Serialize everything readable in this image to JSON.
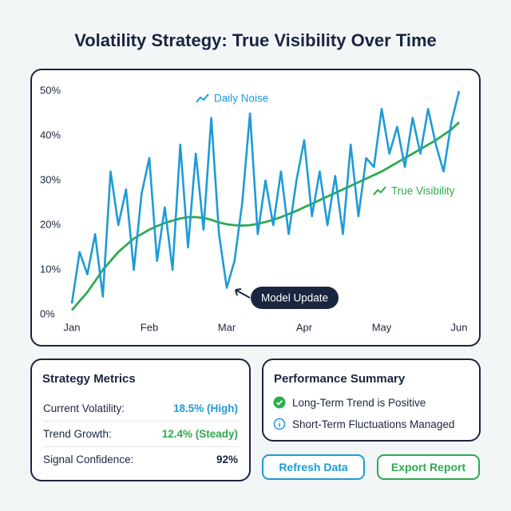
{
  "title": "Volatility Strategy: True Visibility Over Time",
  "chart_data": {
    "type": "line",
    "categories": [
      "Jan",
      null,
      null,
      null,
      null,
      null,
      null,
      null,
      null,
      null,
      "Feb",
      null,
      null,
      null,
      null,
      null,
      null,
      null,
      null,
      null,
      "Mar",
      null,
      null,
      null,
      null,
      null,
      null,
      null,
      null,
      null,
      "Apr",
      null,
      null,
      null,
      null,
      null,
      null,
      null,
      null,
      null,
      "May",
      null,
      null,
      null,
      null,
      null,
      null,
      null,
      null,
      null,
      "Jun"
    ],
    "series": [
      {
        "name": "Daily Noise",
        "color": "#1e9bd7",
        "values": [
          2.5,
          14,
          9,
          18,
          4,
          32,
          20,
          28,
          10,
          27,
          35,
          12,
          24,
          10,
          38,
          15,
          36,
          19,
          44,
          18,
          6,
          12,
          25,
          45,
          18,
          30,
          20,
          32,
          18,
          30,
          39,
          22,
          32,
          20,
          31,
          18,
          38,
          22,
          35,
          33,
          46,
          36,
          42,
          33,
          44,
          36,
          46,
          38,
          32,
          43,
          50
        ]
      },
      {
        "name": "True Visibility",
        "color": "#2eaa4f",
        "values": [
          1,
          3,
          5,
          7.5,
          10,
          12,
          14,
          15.5,
          17,
          18,
          19,
          19.8,
          20.5,
          21,
          21.5,
          21.8,
          21.8,
          21.6,
          21.2,
          20.6,
          20.2,
          20,
          19.9,
          20,
          20.3,
          20.7,
          21.2,
          21.8,
          22.5,
          23.2,
          24,
          24.8,
          25.6,
          26.4,
          27.2,
          28,
          28.8,
          29.6,
          30.4,
          31.2,
          32,
          33,
          34,
          35,
          36,
          37,
          38,
          39,
          40.2,
          41.4,
          43
        ]
      }
    ],
    "ylim": [
      0,
      50
    ],
    "yticks": [
      {
        "value": 0,
        "label": "0%"
      },
      {
        "value": 10,
        "label": "10%"
      },
      {
        "value": 20,
        "label": "20%"
      },
      {
        "value": 30,
        "label": "30%"
      },
      {
        "value": 40,
        "label": "40%"
      },
      {
        "value": 50,
        "label": "50%"
      }
    ],
    "annotation": "Model Update"
  },
  "metrics": {
    "title": "Strategy Metrics",
    "rows": [
      {
        "label": "Current Volatility:",
        "value": "18.5% (High)",
        "color": "#1e9bd7"
      },
      {
        "label": "Trend Growth:",
        "value": "12.4% (Steady)",
        "color": "#2eaa4f"
      },
      {
        "label": "Signal Confidence:",
        "value": "92%",
        "color": "#1a2540"
      }
    ]
  },
  "summary": {
    "title": "Performance Summary",
    "items": [
      "Long-Term Trend is Positive",
      "Short-Term Fluctuations Managed"
    ]
  },
  "buttons": [
    "Refresh Data",
    "Export Report"
  ]
}
